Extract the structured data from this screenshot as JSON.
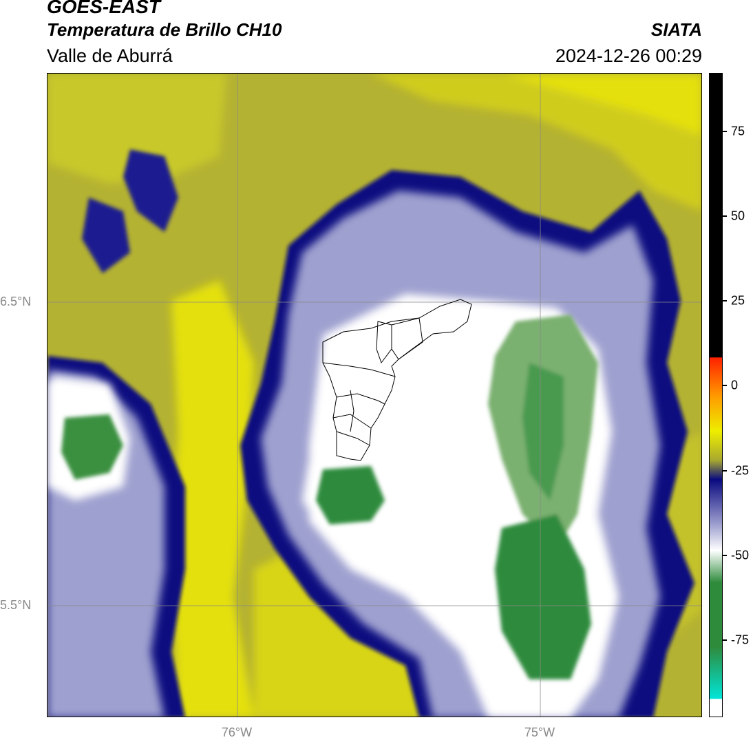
{
  "header": {
    "satellite": "GOES-EAST",
    "product": "Temperatura de Brillo CH10",
    "region": "Valle de Aburrá",
    "agency": "SIATA",
    "datetime": "2024-12-26 00:29"
  },
  "map": {
    "lat_labels": [
      "6.5°N",
      "5.5°N"
    ],
    "lon_labels": [
      "76°W",
      "75°W"
    ]
  },
  "colorbar": {
    "ticks": [
      "75",
      "50",
      "25",
      "0",
      "-25",
      "-50",
      "-75"
    ],
    "colors": {
      "black": "#000000",
      "red": "#ff2200",
      "orange": "#ff9900",
      "yellow": "#eeee00",
      "olive": "#a8a830",
      "navy": "#0a0a80",
      "lavender": "#9ea0cf",
      "white": "#ffffff",
      "green": "#2e8b3c",
      "cyan": "#00e5d8"
    }
  }
}
